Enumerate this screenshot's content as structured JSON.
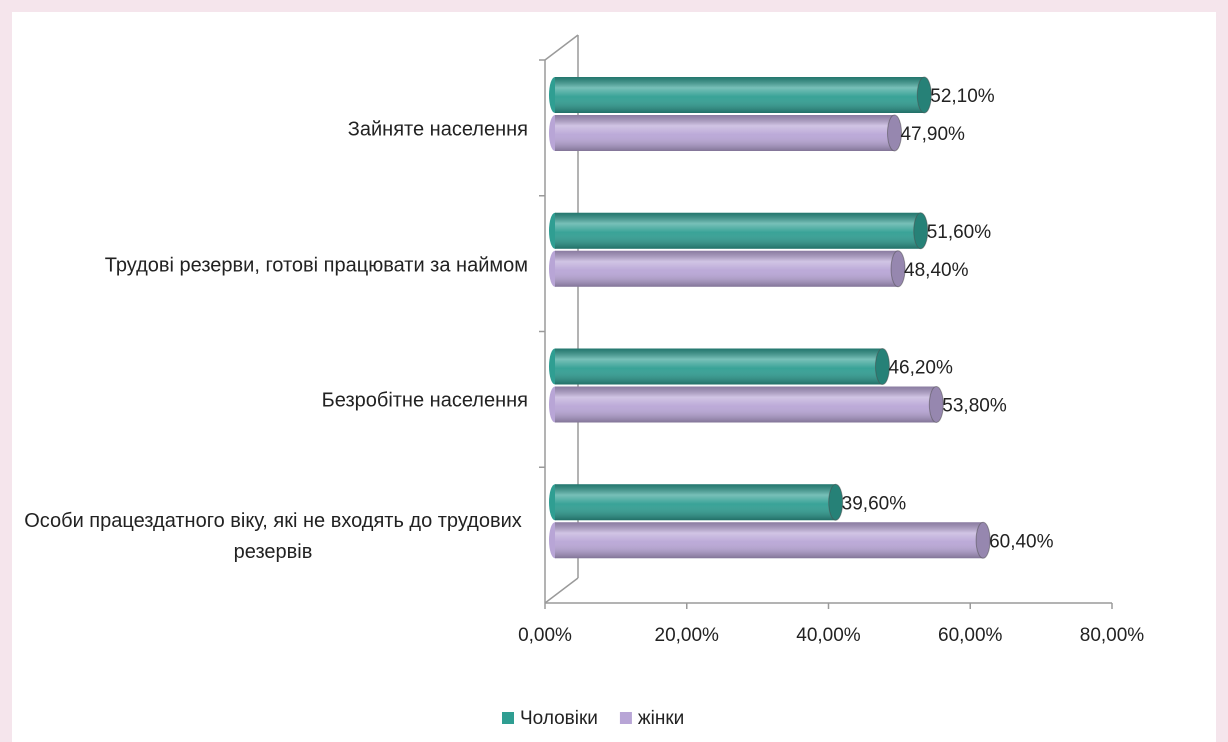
{
  "chart_data": {
    "type": "barh",
    "categories": [
      "Зайняте населення",
      "Трудові резерви, готові працювати за наймом",
      "Безробітне населення",
      "Особи працездатного віку, які не входять до трудових резервів"
    ],
    "series": [
      {
        "name": "Чоловіки",
        "color": "#2f9e92",
        "values": [
          52.1,
          51.6,
          46.2,
          39.6
        ],
        "value_labels": [
          "52,10%",
          "51,60%",
          "46,20%",
          "39,60%"
        ]
      },
      {
        "name": "жінки",
        "color": "#b8a5d6",
        "values": [
          47.9,
          48.4,
          53.8,
          60.4
        ],
        "value_labels": [
          "47,90%",
          "48,40%",
          "53,80%",
          "60,40%"
        ]
      }
    ],
    "xlim": [
      0,
      80
    ],
    "xticks": [
      {
        "value": 0,
        "label": "0,00%"
      },
      {
        "value": 20,
        "label": "20,00%"
      },
      {
        "value": 40,
        "label": "40,00%"
      },
      {
        "value": 60,
        "label": "60,00%"
      },
      {
        "value": 80,
        "label": "80,00%"
      }
    ],
    "grid": false,
    "legend": "bottom"
  }
}
